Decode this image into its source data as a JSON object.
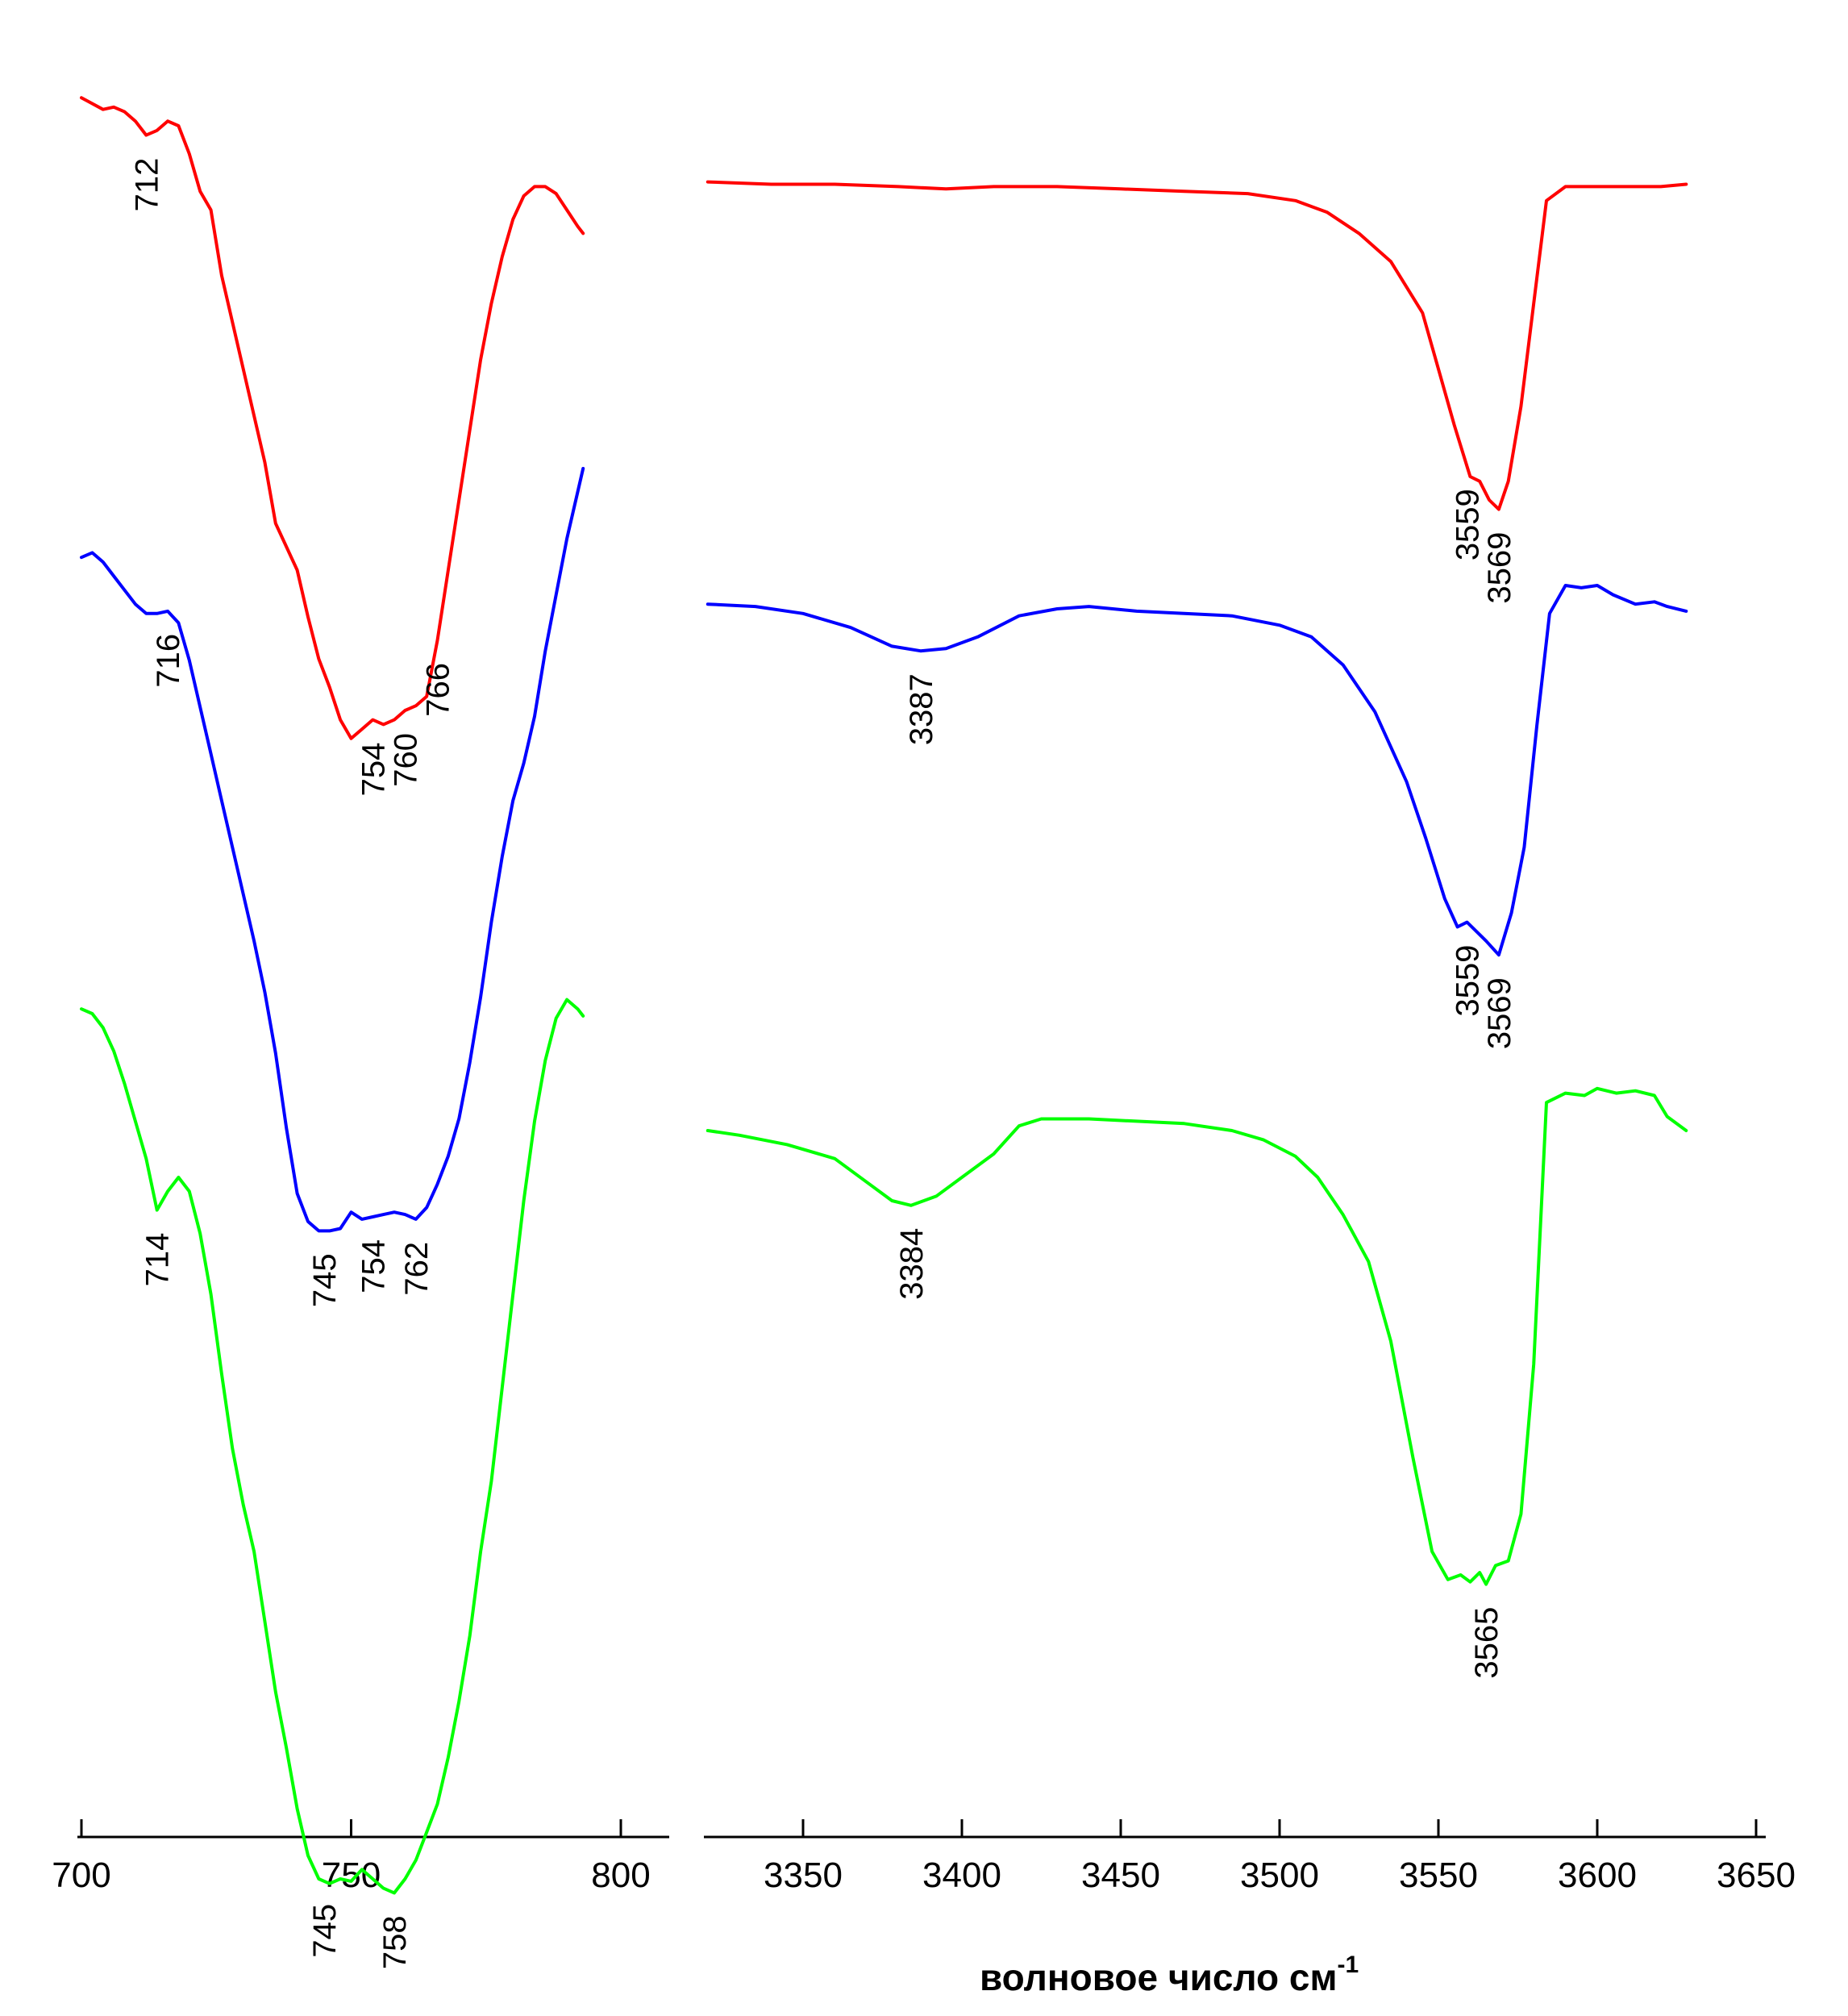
{
  "colors": {
    "red": "#ff0000",
    "blue": "#0000ff",
    "green": "#00ff00"
  },
  "chart_data": [
    {
      "type": "line",
      "panel": "left",
      "xlabel": "",
      "xlim": [
        700,
        810
      ],
      "xticks": [
        700,
        750,
        800
      ],
      "tick_labels": [
        "700",
        "750",
        "800"
      ],
      "grid": false,
      "series": [
        {
          "color": "#ff0000",
          "x": [
            700,
            704,
            706,
            708,
            710,
            712,
            714,
            716,
            718,
            720,
            722,
            724,
            726,
            728,
            730,
            732,
            734,
            736,
            738,
            740,
            742,
            744,
            746,
            748,
            750,
            752,
            754,
            756,
            758,
            760,
            762,
            764,
            766,
            768,
            770,
            772,
            774,
            776,
            778,
            780,
            782,
            784,
            786,
            788,
            790,
            792,
            793
          ],
          "y": [
            0.86,
            0.835,
            0.84,
            0.83,
            0.81,
            0.78,
            0.79,
            0.81,
            0.8,
            0.74,
            0.66,
            0.62,
            0.48,
            0.38,
            0.28,
            0.18,
            0.08,
            -0.05,
            -0.1,
            -0.15,
            -0.25,
            -0.34,
            -0.4,
            -0.47,
            -0.51,
            -0.49,
            -0.47,
            -0.48,
            -0.47,
            -0.45,
            -0.44,
            -0.42,
            -0.3,
            -0.15,
            0.0,
            0.15,
            0.3,
            0.42,
            0.52,
            0.6,
            0.65,
            0.67,
            0.67,
            0.655,
            0.62,
            0.585,
            0.57
          ]
        },
        {
          "color": "#0000ff",
          "x": [
            700,
            702,
            704,
            706,
            708,
            710,
            712,
            714,
            716,
            718,
            720,
            722,
            724,
            726,
            728,
            730,
            732,
            734,
            736,
            738,
            740,
            742,
            744,
            746,
            748,
            750,
            752,
            754,
            756,
            758,
            760,
            762,
            764,
            766,
            768,
            770,
            772,
            774,
            776,
            778,
            780,
            782,
            784,
            786,
            788,
            790,
            792,
            793
          ],
          "y": [
            0.86,
            0.87,
            0.85,
            0.82,
            0.79,
            0.76,
            0.74,
            0.74,
            0.745,
            0.72,
            0.64,
            0.54,
            0.44,
            0.34,
            0.24,
            0.14,
            0.04,
            -0.07,
            -0.2,
            -0.36,
            -0.5,
            -0.56,
            -0.58,
            -0.58,
            -0.575,
            -0.54,
            -0.555,
            -0.55,
            -0.545,
            -0.54,
            -0.545,
            -0.555,
            -0.53,
            -0.48,
            -0.42,
            -0.34,
            -0.22,
            -0.08,
            0.08,
            0.22,
            0.34,
            0.42,
            0.52,
            0.66,
            0.78,
            0.9,
            1.0,
            1.05
          ]
        },
        {
          "color": "#00ff00",
          "x": [
            700,
            702,
            704,
            706,
            708,
            710,
            712,
            714,
            716,
            718,
            720,
            722,
            724,
            726,
            728,
            730,
            732,
            734,
            736,
            738,
            740,
            742,
            744,
            746,
            748,
            750,
            752,
            754,
            756,
            758,
            760,
            762,
            764,
            766,
            768,
            770,
            772,
            774,
            776,
            778,
            780,
            782,
            784,
            786,
            788,
            790,
            792,
            793
          ],
          "y": [
            0.86,
            0.85,
            0.82,
            0.77,
            0.7,
            0.62,
            0.54,
            0.43,
            0.47,
            0.5,
            0.47,
            0.38,
            0.25,
            0.08,
            -0.08,
            -0.2,
            -0.3,
            -0.45,
            -0.6,
            -0.72,
            -0.85,
            -0.95,
            -1.0,
            -1.01,
            -1.0,
            -1.005,
            -0.98,
            -1.0,
            -1.02,
            -1.03,
            -1.0,
            -0.96,
            -0.9,
            -0.84,
            -0.74,
            -0.62,
            -0.48,
            -0.3,
            -0.15,
            0.05,
            0.25,
            0.45,
            0.62,
            0.75,
            0.84,
            0.88,
            0.86,
            0.845
          ]
        }
      ],
      "annotations": [
        {
          "label": "712",
          "color": "#ff0000",
          "x": 712
        },
        {
          "label": "754",
          "color": "#ff0000",
          "x": 754
        },
        {
          "label": "760",
          "color": "#ff0000",
          "x": 760
        },
        {
          "label": "766",
          "color": "#ff0000",
          "x": 766
        },
        {
          "label": "716",
          "color": "#0000ff",
          "x": 716
        },
        {
          "label": "745",
          "color": "#0000ff",
          "x": 745
        },
        {
          "label": "754",
          "color": "#0000ff",
          "x": 754
        },
        {
          "label": "762",
          "color": "#0000ff",
          "x": 762
        },
        {
          "label": "714",
          "color": "#00ff00",
          "x": 714
        },
        {
          "label": "745",
          "color": "#00ff00",
          "x": 745
        },
        {
          "label": "758",
          "color": "#00ff00",
          "x": 758
        }
      ]
    },
    {
      "type": "line",
      "panel": "right",
      "xlabel": "волновое число см",
      "xlabel_superscript": "-1",
      "xlim": [
        3320,
        3650
      ],
      "xticks": [
        3350,
        3400,
        3450,
        3500,
        3550,
        3600,
        3650
      ],
      "tick_labels": [
        "3350",
        "3400",
        "3450",
        "3500",
        "3550",
        "3600",
        "3650"
      ],
      "grid": false,
      "series": [
        {
          "color": "#ff0000",
          "x": [
            3320,
            3340,
            3360,
            3380,
            3395,
            3410,
            3430,
            3450,
            3470,
            3490,
            3505,
            3515,
            3525,
            3535,
            3545,
            3550,
            3555,
            3560,
            3563,
            3566,
            3569,
            3572,
            3576,
            3580,
            3584,
            3590,
            3600,
            3610,
            3620,
            3628
          ],
          "y": [
            0.68,
            0.675,
            0.675,
            0.67,
            0.665,
            0.67,
            0.67,
            0.665,
            0.66,
            0.655,
            0.64,
            0.615,
            0.57,
            0.51,
            0.4,
            0.28,
            0.16,
            0.05,
            0.04,
            0.0,
            -0.02,
            0.04,
            0.2,
            0.42,
            0.64,
            0.67,
            0.67,
            0.67,
            0.67,
            0.675
          ]
        },
        {
          "color": "#0000ff",
          "x": [
            3320,
            3335,
            3350,
            3365,
            3378,
            3387,
            3395,
            3405,
            3418,
            3430,
            3440,
            3455,
            3470,
            3485,
            3500,
            3510,
            3520,
            3530,
            3540,
            3546,
            3552,
            3556,
            3559,
            3562,
            3565,
            3569,
            3573,
            3577,
            3581,
            3585,
            3590,
            3595,
            3600,
            3605,
            3612,
            3618,
            3622,
            3628
          ],
          "y": [
            0.76,
            0.755,
            0.74,
            0.71,
            0.67,
            0.66,
            0.665,
            0.69,
            0.735,
            0.75,
            0.755,
            0.745,
            0.74,
            0.735,
            0.715,
            0.69,
            0.63,
            0.53,
            0.38,
            0.26,
            0.13,
            0.07,
            0.08,
            0.06,
            0.04,
            0.01,
            0.1,
            0.24,
            0.5,
            0.74,
            0.8,
            0.795,
            0.8,
            0.78,
            0.76,
            0.765,
            0.755,
            0.745
          ]
        },
        {
          "color": "#00ff00",
          "x": [
            3320,
            3330,
            3345,
            3360,
            3370,
            3378,
            3384,
            3392,
            3400,
            3410,
            3418,
            3425,
            3440,
            3455,
            3470,
            3485,
            3495,
            3505,
            3512,
            3520,
            3528,
            3535,
            3542,
            3548,
            3553,
            3557,
            3560,
            3563,
            3565,
            3568,
            3572,
            3576,
            3580,
            3584,
            3590,
            3596,
            3600,
            3606,
            3612,
            3618,
            3622,
            3628
          ],
          "y": [
            0.6,
            0.59,
            0.57,
            0.54,
            0.49,
            0.45,
            0.44,
            0.46,
            0.5,
            0.55,
            0.61,
            0.625,
            0.625,
            0.62,
            0.615,
            0.6,
            0.58,
            0.545,
            0.5,
            0.42,
            0.32,
            0.15,
            -0.1,
            -0.3,
            -0.36,
            -0.35,
            -0.365,
            -0.345,
            -0.37,
            -0.33,
            -0.32,
            -0.22,
            0.1,
            0.66,
            0.68,
            0.675,
            0.69,
            0.68,
            0.685,
            0.675,
            0.63,
            0.6
          ]
        }
      ],
      "annotations": [
        {
          "label": "3559",
          "color": "#ff0000",
          "x": 3559
        },
        {
          "label": "3569",
          "color": "#ff0000",
          "x": 3569
        },
        {
          "label": "3387",
          "color": "#0000ff",
          "x": 3387
        },
        {
          "label": "3559",
          "color": "#0000ff",
          "x": 3559
        },
        {
          "label": "3569",
          "color": "#0000ff",
          "x": 3569
        },
        {
          "label": "3384",
          "color": "#00ff00",
          "x": 3384
        },
        {
          "label": "3565",
          "color": "#00ff00",
          "x": 3565
        }
      ]
    }
  ]
}
